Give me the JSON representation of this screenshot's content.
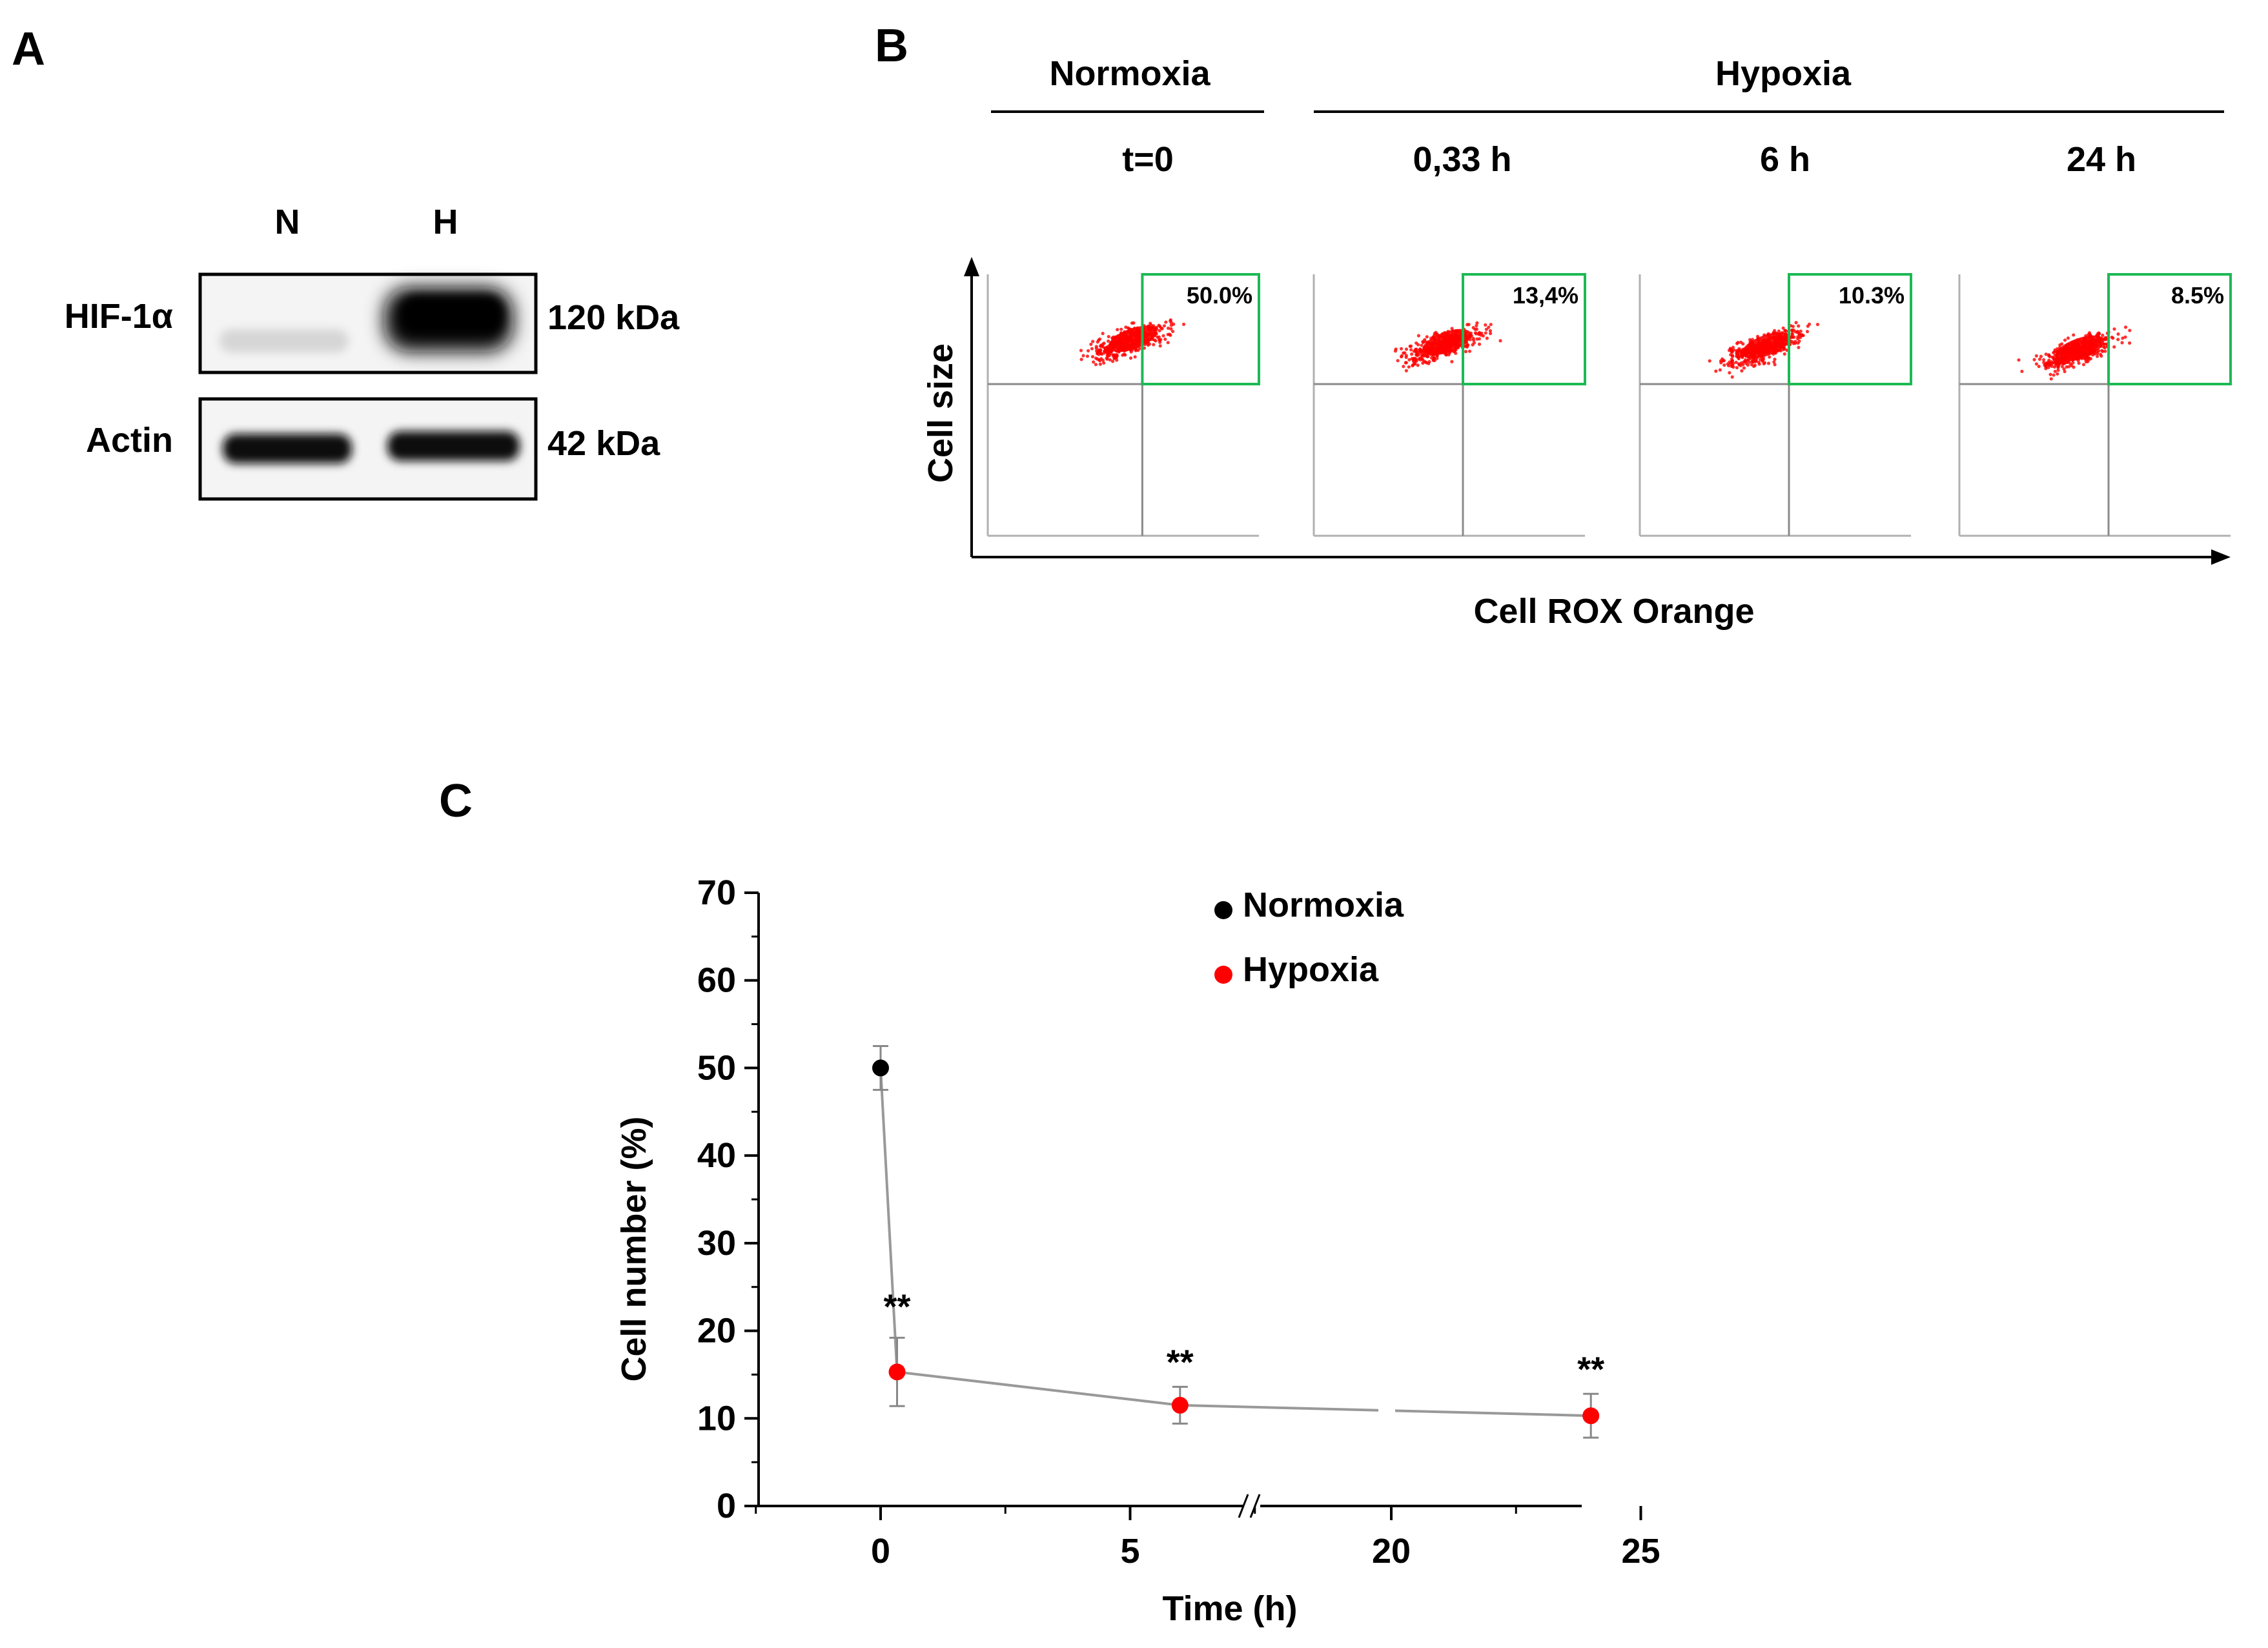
{
  "panel_a": {
    "label": "A",
    "lanes": [
      "N",
      "H"
    ],
    "rows": [
      {
        "protein": "HIF-1α",
        "size": "120 kDa"
      },
      {
        "protein": "Actin",
        "size": "42 kDa"
      }
    ]
  },
  "panel_b": {
    "label": "B",
    "group_normoxia": "Normoxia",
    "group_hypoxia": "Hypoxia",
    "timepoints": [
      "t=0",
      "0,33 h",
      "6 h",
      "24 h"
    ],
    "gate_values": [
      "50.0%",
      "13,4%",
      "10.3%",
      "8.5%"
    ],
    "y_axis_label": "Cell size",
    "x_axis_label": "Cell ROX Orange",
    "gate_color": "#1db954",
    "dot_color": "#ff0000"
  },
  "panel_c": {
    "label": "C",
    "significance_mark": "**",
    "legend": [
      {
        "name": "Normoxia",
        "color": "#000000"
      },
      {
        "name": "Hypoxia",
        "color": "#ff0000"
      }
    ]
  },
  "chart_data": {
    "type": "scatter",
    "title": "",
    "xlabel": "Time (h)",
    "ylabel": "Cell number (%)",
    "ylim": [
      0,
      70
    ],
    "yticks": [
      0,
      10,
      20,
      30,
      40,
      50,
      60,
      70
    ],
    "xticks_labels": [
      "0",
      "5",
      "20",
      "25"
    ],
    "x_axis_break": [
      10,
      20
    ],
    "series": [
      {
        "name": "Normoxia",
        "color": "#000000",
        "points": [
          {
            "x": 0,
            "y": 50,
            "err": 2.5
          }
        ]
      },
      {
        "name": "Hypoxia",
        "color": "#ff0000",
        "points": [
          {
            "x": 0.33,
            "y": 15.3,
            "err": 3.9
          },
          {
            "x": 6,
            "y": 11.5,
            "err": 2.1
          },
          {
            "x": 24,
            "y": 10.3,
            "err": 2.5
          }
        ]
      }
    ],
    "connecting_line_color": "#999999"
  }
}
